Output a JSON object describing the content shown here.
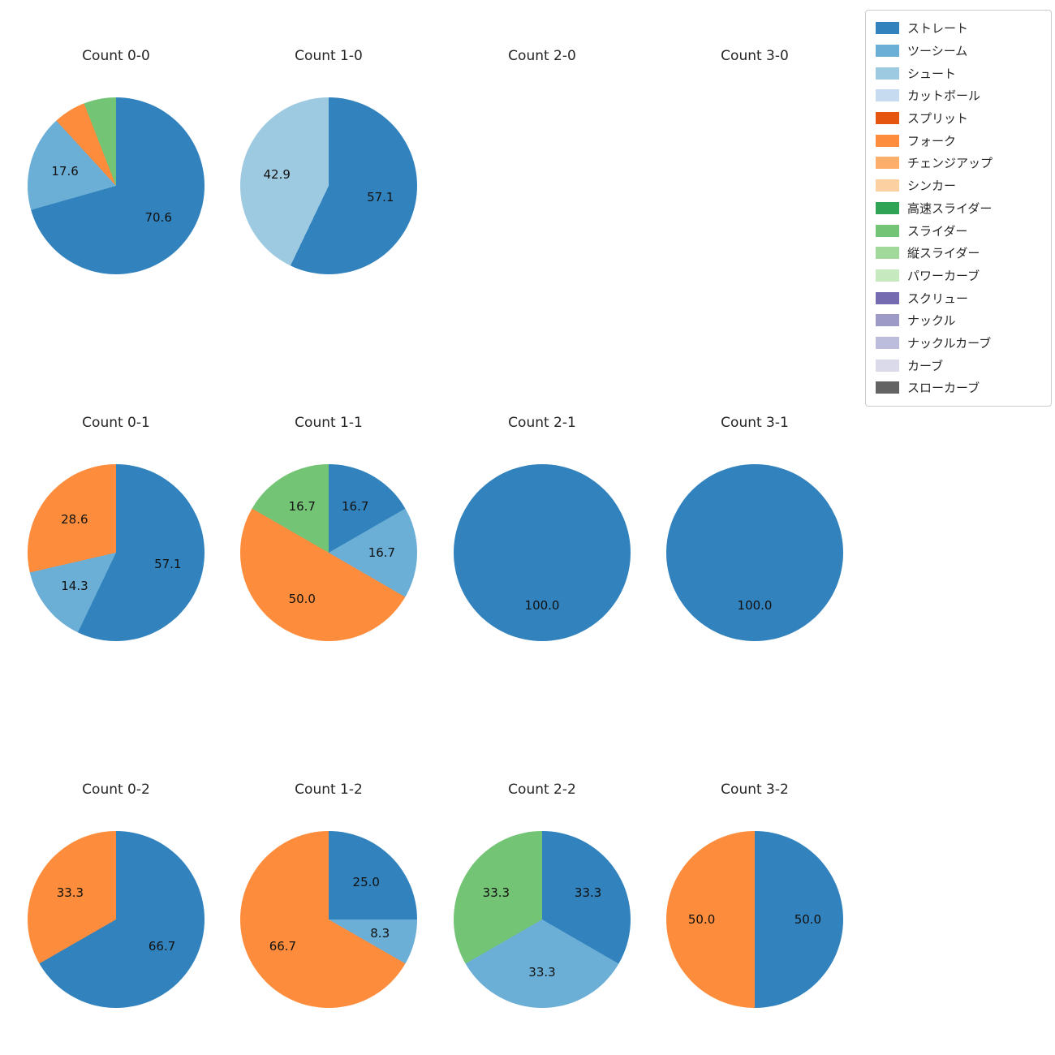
{
  "page": {
    "background_color": "#ffffff",
    "title_color": "#262626"
  },
  "legend": {
    "items": [
      {
        "label": "ストレート",
        "color": "#3182bd"
      },
      {
        "label": "ツーシーム",
        "color": "#6baed6"
      },
      {
        "label": "シュート",
        "color": "#9ecae1"
      },
      {
        "label": "カットボール",
        "color": "#c6dbef"
      },
      {
        "label": "スプリット",
        "color": "#e6550d"
      },
      {
        "label": "フォーク",
        "color": "#fd8d3c"
      },
      {
        "label": "チェンジアップ",
        "color": "#fdae6b"
      },
      {
        "label": "シンカー",
        "color": "#fdd0a2"
      },
      {
        "label": "高速スライダー",
        "color": "#31a354"
      },
      {
        "label": "スライダー",
        "color": "#74c476"
      },
      {
        "label": "縦スライダー",
        "color": "#a1d99b"
      },
      {
        "label": "パワーカーブ",
        "color": "#c7e9c0"
      },
      {
        "label": "スクリュー",
        "color": "#756bb1"
      },
      {
        "label": "ナックル",
        "color": "#9e9ac8"
      },
      {
        "label": "ナックルカーブ",
        "color": "#bcbddc"
      },
      {
        "label": "カーブ",
        "color": "#dadaeb"
      },
      {
        "label": "スローカーブ",
        "color": "#636363"
      }
    ]
  },
  "chart_data": [
    {
      "type": "pie",
      "title": "Count 0-0",
      "slices": [
        {
          "pitch": "ストレート",
          "value": 70.6,
          "label": "70.6"
        },
        {
          "pitch": "ツーシーム",
          "value": 17.6,
          "label": "17.6"
        },
        {
          "pitch": "フォーク",
          "value": 5.9,
          "label": ""
        },
        {
          "pitch": "スライダー",
          "value": 5.9,
          "label": ""
        }
      ]
    },
    {
      "type": "pie",
      "title": "Count 1-0",
      "slices": [
        {
          "pitch": "ストレート",
          "value": 57.1,
          "label": "57.1"
        },
        {
          "pitch": "シュート",
          "value": 42.9,
          "label": "42.9"
        }
      ]
    },
    {
      "type": "pie",
      "title": "Count 2-0",
      "slices": []
    },
    {
      "type": "pie",
      "title": "Count 3-0",
      "slices": []
    },
    {
      "type": "pie",
      "title": "Count 0-1",
      "slices": [
        {
          "pitch": "ストレート",
          "value": 57.1,
          "label": "57.1"
        },
        {
          "pitch": "ツーシーム",
          "value": 14.3,
          "label": "14.3"
        },
        {
          "pitch": "フォーク",
          "value": 28.6,
          "label": "28.6"
        }
      ]
    },
    {
      "type": "pie",
      "title": "Count 1-1",
      "slices": [
        {
          "pitch": "ストレート",
          "value": 16.7,
          "label": "16.7"
        },
        {
          "pitch": "ツーシーム",
          "value": 16.7,
          "label": "16.7"
        },
        {
          "pitch": "フォーク",
          "value": 50.0,
          "label": "50.0"
        },
        {
          "pitch": "スライダー",
          "value": 16.7,
          "label": "16.7"
        }
      ]
    },
    {
      "type": "pie",
      "title": "Count 2-1",
      "slices": [
        {
          "pitch": "ストレート",
          "value": 100.0,
          "label": "100.0"
        }
      ]
    },
    {
      "type": "pie",
      "title": "Count 3-1",
      "slices": [
        {
          "pitch": "ストレート",
          "value": 100.0,
          "label": "100.0"
        }
      ]
    },
    {
      "type": "pie",
      "title": "Count 0-2",
      "slices": [
        {
          "pitch": "ストレート",
          "value": 66.7,
          "label": "66.7"
        },
        {
          "pitch": "フォーク",
          "value": 33.3,
          "label": "33.3"
        }
      ]
    },
    {
      "type": "pie",
      "title": "Count 1-2",
      "slices": [
        {
          "pitch": "ストレート",
          "value": 25.0,
          "label": "25.0"
        },
        {
          "pitch": "ツーシーム",
          "value": 8.3,
          "label": "8.3"
        },
        {
          "pitch": "フォーク",
          "value": 66.7,
          "label": "66.7"
        }
      ]
    },
    {
      "type": "pie",
      "title": "Count 2-2",
      "slices": [
        {
          "pitch": "ストレート",
          "value": 33.3,
          "label": "33.3"
        },
        {
          "pitch": "ツーシーム",
          "value": 33.3,
          "label": "33.3"
        },
        {
          "pitch": "スライダー",
          "value": 33.3,
          "label": "33.3"
        }
      ]
    },
    {
      "type": "pie",
      "title": "Count 3-2",
      "slices": [
        {
          "pitch": "ストレート",
          "value": 50.0,
          "label": "50.0"
        },
        {
          "pitch": "フォーク",
          "value": 50.0,
          "label": "50.0"
        }
      ]
    }
  ]
}
